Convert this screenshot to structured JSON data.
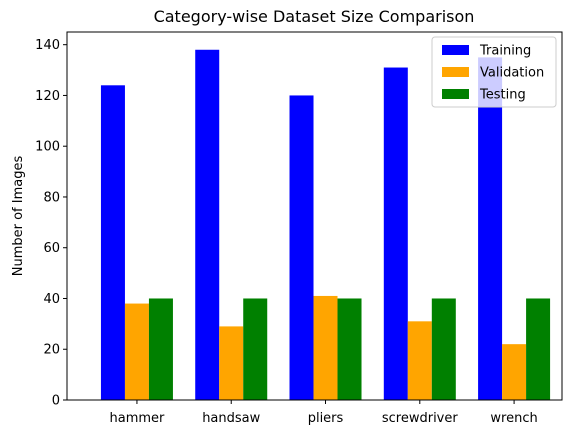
{
  "chart_data": {
    "type": "bar",
    "title": "Category-wise Dataset Size Comparison",
    "xlabel": "",
    "ylabel": "Number of Images",
    "categories": [
      "hammer",
      "handsaw",
      "pliers",
      "screwdriver",
      "wrench"
    ],
    "series": [
      {
        "name": "Training",
        "color": "#0000ff",
        "values": [
          124,
          138,
          120,
          131,
          135
        ]
      },
      {
        "name": "Validation",
        "color": "#ffa500",
        "values": [
          38,
          29,
          41,
          31,
          22
        ]
      },
      {
        "name": "Testing",
        "color": "#008000",
        "values": [
          40,
          40,
          40,
          40,
          40
        ]
      }
    ],
    "ylim": [
      0,
      145
    ],
    "yticks": [
      0,
      20,
      40,
      60,
      80,
      100,
      120,
      140
    ],
    "grid": false,
    "legend_position": "top-right"
  }
}
